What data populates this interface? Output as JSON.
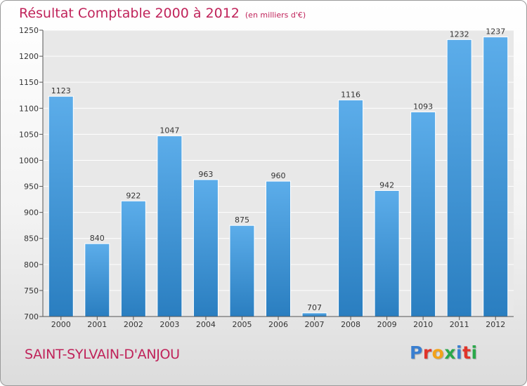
{
  "header": {
    "title": "Résultat Comptable 2000 à 2012",
    "subtitle": "(en milliers d'€)"
  },
  "footer": {
    "commune": "SAINT-SYLVAIN-D'ANJOU",
    "logo_letters": [
      "P",
      "r",
      "o",
      "x",
      "i",
      "t",
      "i"
    ],
    "logo_colors": [
      "#3a7fd0",
      "#e0342a",
      "#f2a21a",
      "#2aa84a",
      "#3a7fd0",
      "#e0342a",
      "#2aa84a"
    ]
  },
  "chart_data": {
    "type": "bar",
    "title": "Résultat Comptable 2000 à 2012",
    "subtitle": "(en milliers d'€)",
    "xlabel": "",
    "ylabel": "",
    "categories": [
      "2000",
      "2001",
      "2002",
      "2003",
      "2004",
      "2005",
      "2006",
      "2007",
      "2008",
      "2009",
      "2010",
      "2011",
      "2012"
    ],
    "values": [
      1123,
      840,
      922,
      1047,
      963,
      875,
      960,
      707,
      1116,
      942,
      1093,
      1232,
      1237
    ],
    "ylim": [
      700,
      1250
    ],
    "yticks": [
      700,
      750,
      800,
      850,
      900,
      950,
      1000,
      1050,
      1100,
      1150,
      1200,
      1250
    ],
    "grid": true,
    "bar_color_top": "#5cadea",
    "bar_color_bottom": "#2a7ec0"
  }
}
